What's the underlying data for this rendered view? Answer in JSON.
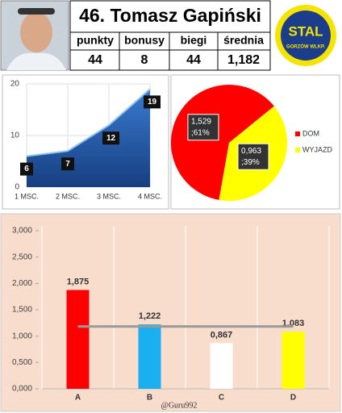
{
  "header": {
    "title": "46. Tomasz Gapiński",
    "stats": {
      "headers": [
        "punkty",
        "bonusy",
        "biegi",
        "średnia"
      ],
      "values": [
        44,
        8,
        44,
        "1,182"
      ]
    },
    "logo": {
      "text": "STAL",
      "subtext": "GORZÓW WLKP."
    }
  },
  "chart_data": [
    {
      "type": "area",
      "categories": [
        "1 MSC.",
        "2 MSC.",
        "3 MSC.",
        "4 MSC."
      ],
      "values": [
        6,
        7,
        12,
        19
      ],
      "color": "#1f5fb0",
      "ylim": [
        0,
        20
      ],
      "yticks": [
        0,
        10,
        20
      ],
      "grid": true
    },
    {
      "type": "pie",
      "categories": [
        "DOM",
        "WYJAZD"
      ],
      "values": [
        1.529,
        0.963
      ],
      "value_labels": [
        "1,529",
        "0,963"
      ],
      "percent_labels": [
        ";61%",
        ";39%"
      ],
      "colors": [
        "#ff0000",
        "#ffff00"
      ],
      "legend": "right"
    },
    {
      "type": "bar",
      "categories": [
        "A",
        "B",
        "C",
        "D"
      ],
      "values": [
        1.875,
        1.222,
        0.867,
        1.083
      ],
      "value_labels": [
        "1,875",
        "1,222",
        "0,867",
        "1,083"
      ],
      "colors": [
        "#ff0000",
        "#1ab0f0",
        "#ffffff",
        "#ffff00"
      ],
      "ylim": [
        0,
        3
      ],
      "yticks": [
        {
          "value": 0,
          "label": "0,000"
        },
        {
          "value": 0.5,
          "label": "0,500"
        },
        {
          "value": 1,
          "label": "1,000"
        },
        {
          "value": 1.5,
          "label": "1,500"
        },
        {
          "value": 2,
          "label": "2,000"
        },
        {
          "value": 2.5,
          "label": "2,500"
        },
        {
          "value": 3,
          "label": "3,000"
        }
      ],
      "reference_line": 1.182,
      "annotation": "@Guru992"
    }
  ]
}
